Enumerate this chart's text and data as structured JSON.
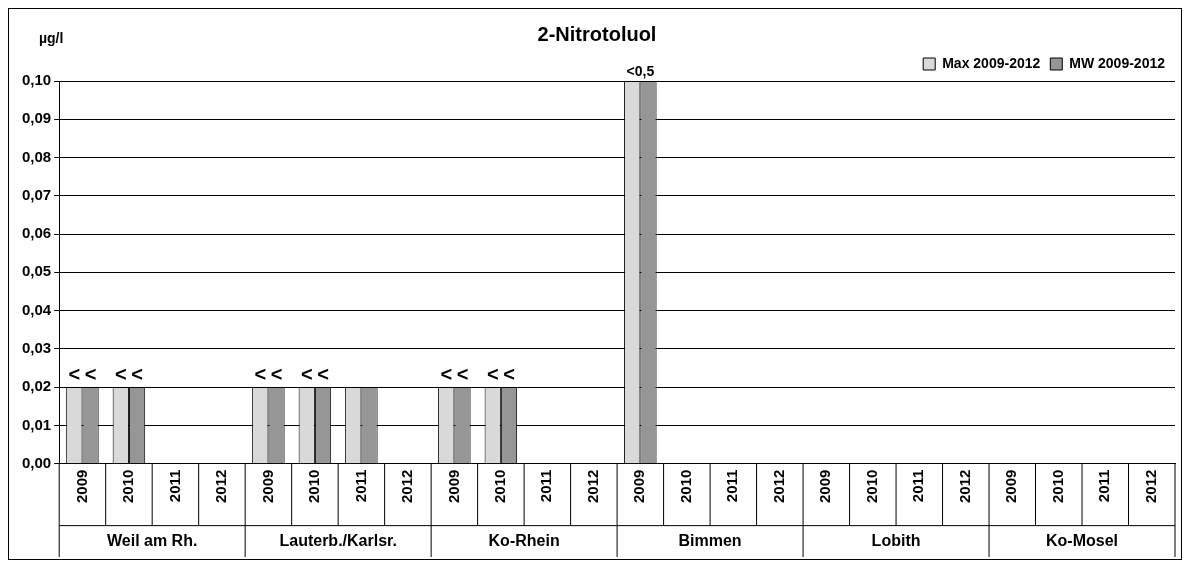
{
  "chart_data": {
    "type": "bar",
    "title": "2-Nitrotoluol",
    "ylabel": "µg/l",
    "categories": [
      "2009",
      "2010",
      "2011",
      "2012",
      "2009",
      "2010",
      "2011",
      "2012",
      "2009",
      "2010",
      "2011",
      "2012",
      "2009",
      "2010",
      "2011",
      "2012",
      "2009",
      "2010",
      "2011",
      "2012",
      "2009",
      "2010",
      "2011",
      "2012"
    ],
    "annotations": [
      "Weil am Rh.",
      "Lauterb./Karlsr.",
      "Ko-Rhein",
      "Bimmen",
      "Lobith",
      "Ko-Mosel"
    ],
    "series": [
      {
        "name": "Max 2009-2012",
        "color": "#d9d9d9",
        "values": [
          0.02,
          0.02,
          null,
          null,
          0.02,
          0.02,
          0.02,
          null,
          0.02,
          0.02,
          null,
          null,
          0.1,
          null,
          null,
          null,
          null,
          null,
          null,
          null,
          null,
          null,
          null,
          null
        ],
        "value_labels": [
          "<",
          "<",
          null,
          null,
          "<",
          "<",
          null,
          null,
          "<",
          "<",
          null,
          null,
          "<0,5",
          null,
          null,
          null,
          null,
          null,
          null,
          null,
          null,
          null,
          null,
          null
        ]
      },
      {
        "name": "MW 2009-2012",
        "color": "#969696",
        "values": [
          0.02,
          0.02,
          null,
          null,
          0.02,
          0.02,
          0.02,
          null,
          0.02,
          0.02,
          null,
          null,
          0.1,
          null,
          null,
          null,
          null,
          null,
          null,
          null,
          null,
          null,
          null,
          null
        ],
        "value_labels": [
          "<",
          "<",
          null,
          null,
          "<",
          "<",
          null,
          null,
          "<",
          "<",
          null,
          null,
          null,
          null,
          null,
          null,
          null,
          null,
          null,
          null,
          null,
          null,
          null,
          null
        ]
      }
    ],
    "ylim": [
      0,
      0.1
    ],
    "yticks": [
      {
        "value": 0,
        "label": "0,00"
      },
      {
        "value": 0.01,
        "label": "0,01"
      },
      {
        "value": 0.02,
        "label": "0,02"
      },
      {
        "value": 0.03,
        "label": "0,03"
      },
      {
        "value": 0.04,
        "label": "0,04"
      },
      {
        "value": 0.05,
        "label": "0,05"
      },
      {
        "value": 0.06,
        "label": "0,06"
      },
      {
        "value": 0.07,
        "label": "0,07"
      },
      {
        "value": 0.08,
        "label": "0,08"
      },
      {
        "value": 0.09,
        "label": "0,09"
      },
      {
        "value": 0.1,
        "label": "0,10"
      }
    ],
    "grid": "y",
    "legend": "top right"
  }
}
